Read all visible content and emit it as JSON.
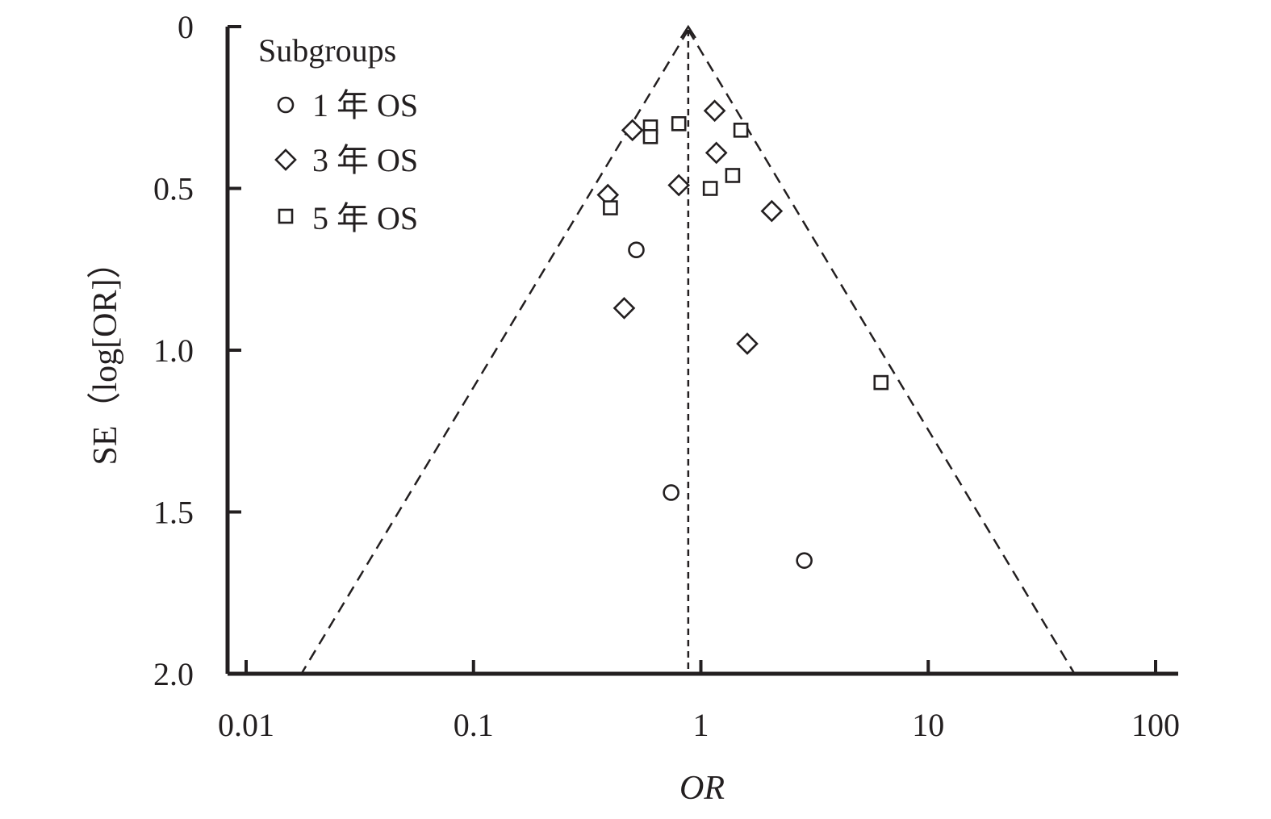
{
  "chart_data": {
    "type": "scatter",
    "subtype": "funnel",
    "xlabel": "OR",
    "ylabel": "SE（log[OR]）",
    "x_scale": "log",
    "xlim": [
      0.01,
      100
    ],
    "ylim": [
      0,
      2
    ],
    "y_inverted": true,
    "x_ticks": [
      "0.01",
      "0.1",
      "1",
      "10",
      "100"
    ],
    "y_ticks": [
      "0",
      "0.5",
      "1.0",
      "1.5",
      "2.0"
    ],
    "grid": false,
    "legend": {
      "title": "Subgroups",
      "position": "top-left",
      "entries": [
        {
          "label": "1 年 OS",
          "marker": "circle"
        },
        {
          "label": "3 年 OS",
          "marker": "diamond"
        },
        {
          "label": "5 年 OS",
          "marker": "square"
        }
      ]
    },
    "funnel": {
      "pooled_or": 0.88,
      "apex_se": 0,
      "base_se": 2.0,
      "base_left_or": 0.0175,
      "base_right_or": 44,
      "center_line": "dashed",
      "edges": "dashed"
    },
    "series": [
      {
        "name": "1 年 OS",
        "marker": "circle",
        "points": [
          {
            "x": 0.52,
            "y": 0.69
          },
          {
            "x": 0.74,
            "y": 1.44
          },
          {
            "x": 2.85,
            "y": 1.65
          }
        ]
      },
      {
        "name": "3 年 OS",
        "marker": "diamond",
        "points": [
          {
            "x": 1.15,
            "y": 0.26
          },
          {
            "x": 0.5,
            "y": 0.32
          },
          {
            "x": 1.17,
            "y": 0.39
          },
          {
            "x": 0.8,
            "y": 0.49
          },
          {
            "x": 0.39,
            "y": 0.52
          },
          {
            "x": 2.05,
            "y": 0.57
          },
          {
            "x": 0.46,
            "y": 0.87
          },
          {
            "x": 1.6,
            "y": 0.98
          }
        ]
      },
      {
        "name": "5 年 OS",
        "marker": "square",
        "points": [
          {
            "x": 0.6,
            "y": 0.31
          },
          {
            "x": 0.6,
            "y": 0.34
          },
          {
            "x": 0.8,
            "y": 0.3
          },
          {
            "x": 1.5,
            "y": 0.32
          },
          {
            "x": 1.38,
            "y": 0.46
          },
          {
            "x": 1.1,
            "y": 0.5
          },
          {
            "x": 0.4,
            "y": 0.56
          },
          {
            "x": 6.2,
            "y": 1.1
          }
        ]
      }
    ]
  },
  "colors": {
    "ink": "#231f20",
    "background": "#ffffff"
  }
}
